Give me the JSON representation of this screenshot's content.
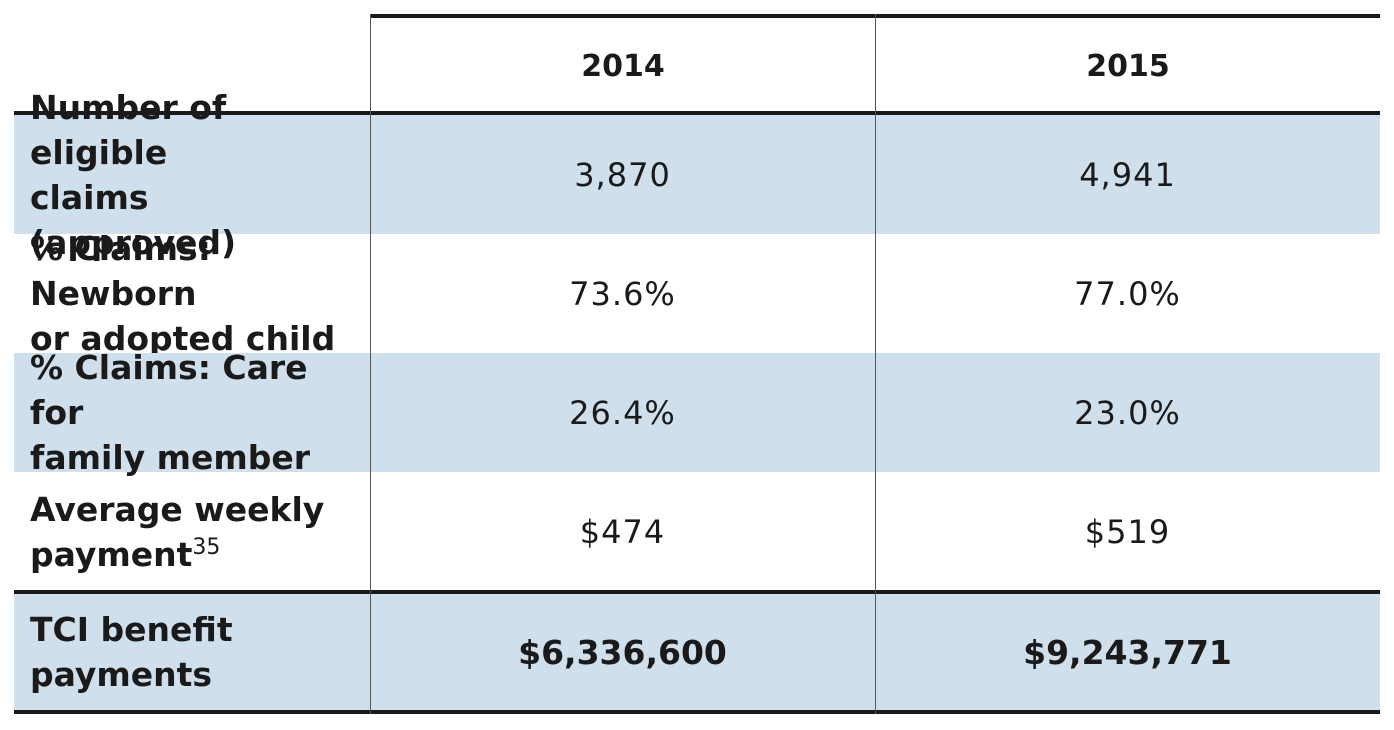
{
  "table": {
    "columns": [
      "2014",
      "2015"
    ],
    "rows": [
      {
        "label_line1": "Number of eligible",
        "label_line2": "claims (approved)",
        "v2014": "3,870",
        "v2015": "4,941"
      },
      {
        "label_line1": "% Claims: Newborn",
        "label_line2": "or adopted child",
        "v2014": "73.6%",
        "v2015": "77.0%"
      },
      {
        "label_line1": "% Claims: Care for",
        "label_line2": "family member",
        "v2014": "26.4%",
        "v2015": "23.0%"
      },
      {
        "label_line1": "Average weekly",
        "label_line2": "payment",
        "footnote": "35",
        "v2014": "$474",
        "v2015": "$519"
      },
      {
        "label_line1": "TCI benefit",
        "label_line2": "payments",
        "v2014": "$6,336,600",
        "v2015": "$9,243,771"
      }
    ]
  },
  "colors": {
    "shaded_row": "#cfe0ec",
    "rule": "#1a1a1a"
  }
}
